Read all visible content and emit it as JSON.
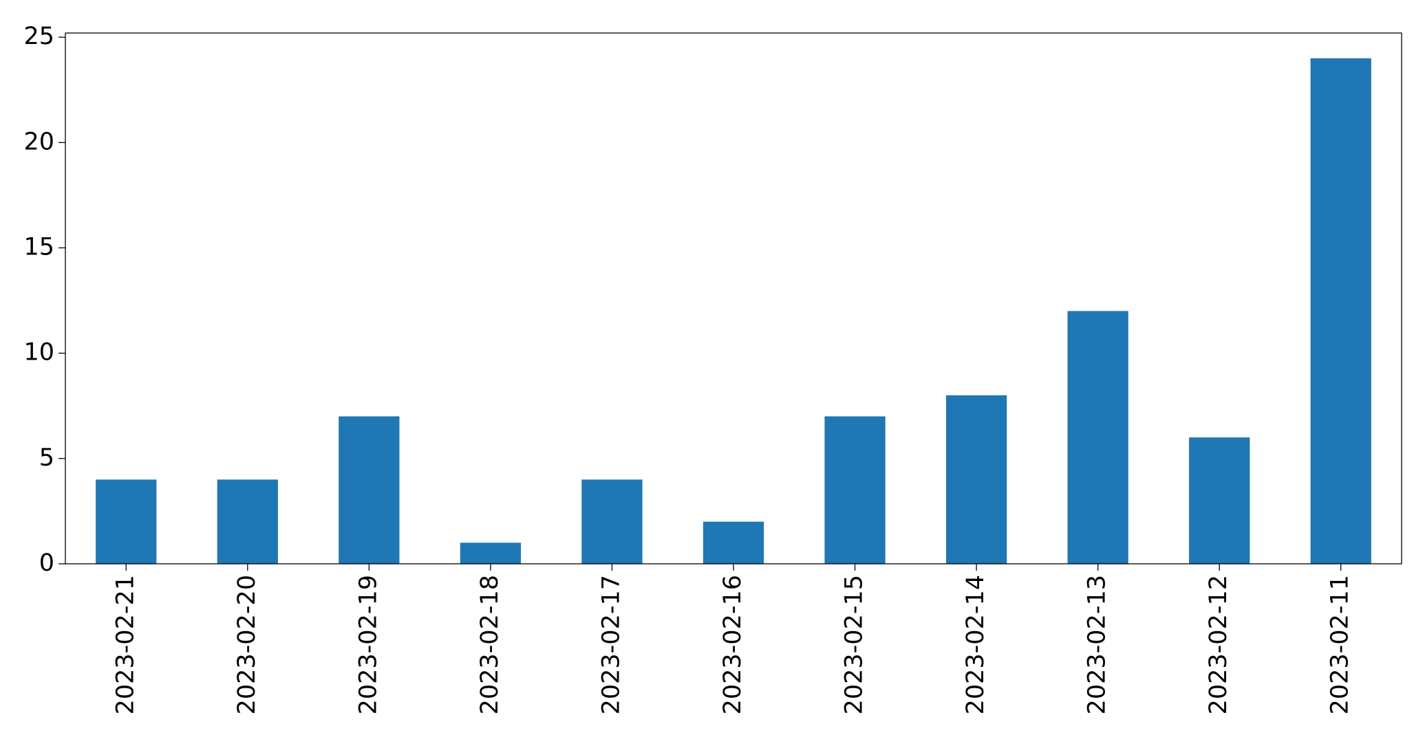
{
  "chart_data": {
    "type": "bar",
    "categories": [
      "2023-02-21",
      "2023-02-20",
      "2023-02-19",
      "2023-02-18",
      "2023-02-17",
      "2023-02-16",
      "2023-02-15",
      "2023-02-14",
      "2023-02-13",
      "2023-02-12",
      "2023-02-11"
    ],
    "values": [
      4,
      4,
      7,
      1,
      4,
      2,
      7,
      8,
      12,
      6,
      24
    ],
    "color": "#1f77b4",
    "ylim": [
      0,
      25.2
    ],
    "yticks": [
      0,
      5,
      10,
      15,
      20,
      25
    ],
    "grid": false
  }
}
